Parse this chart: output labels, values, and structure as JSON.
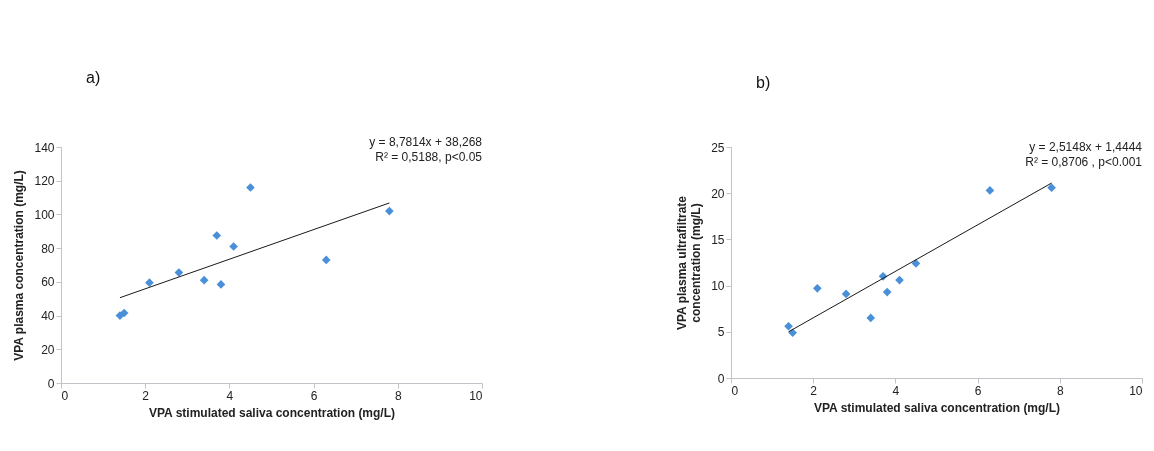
{
  "chart_data": [
    {
      "type": "scatter",
      "title": "a)",
      "xlabel": "VPA stimulated saliva concentration (mg/L)",
      "ylabel": "VPA plasma concentration (mg/L)",
      "annotations": [
        "y = 8,7814x + 38,268",
        "R² = 0,5188, p<0.05"
      ],
      "xlim": [
        0,
        10
      ],
      "xticks": [
        0,
        2,
        4,
        6,
        8,
        10
      ],
      "ylim": [
        0,
        140
      ],
      "yticks": [
        0,
        20,
        40,
        60,
        80,
        100,
        120,
        140
      ],
      "marker": "diamond",
      "series": [
        {
          "color": "#4a90d9",
          "x": [
            1.4,
            1.5,
            2.1,
            2.8,
            3.4,
            3.7,
            3.8,
            4.1,
            4.5,
            6.3,
            7.8
          ],
          "values": [
            40,
            41.5,
            59.5,
            65.5,
            61,
            87.5,
            58.5,
            81,
            116,
            73,
            102
          ]
        },
        {
          "type": "line",
          "marker": "none",
          "color": "#1a1a1a",
          "x": [
            1.4,
            7.8
          ],
          "values": [
            50.6,
            106.8
          ]
        }
      ]
    },
    {
      "type": "scatter",
      "title": "b)",
      "xlabel": "VPA stimulated saliva concentration (mg/L)",
      "ylabel": "VPA plasma ultrafiltrate concentration (mg/L)",
      "annotations": [
        "y = 2,5148x + 1,4444",
        "R² = 0,8706 , p<0.001"
      ],
      "xlim": [
        0,
        10
      ],
      "xticks": [
        0,
        2,
        4,
        6,
        8,
        10
      ],
      "ylim": [
        0,
        25
      ],
      "yticks": [
        0,
        5,
        10,
        15,
        20,
        25
      ],
      "marker": "diamond",
      "series": [
        {
          "color": "#4a90d9",
          "x": [
            1.4,
            1.5,
            2.1,
            2.8,
            3.4,
            3.7,
            3.8,
            4.1,
            4.5,
            6.3,
            7.8
          ],
          "values": [
            5.6,
            4.9,
            9.7,
            9.1,
            6.5,
            11,
            9.3,
            10.6,
            12.4,
            20.3,
            20.6
          ]
        },
        {
          "type": "line",
          "marker": "none",
          "color": "#1a1a1a",
          "x": [
            1.4,
            7.8
          ],
          "values": [
            5.0,
            21.1
          ]
        }
      ]
    }
  ]
}
